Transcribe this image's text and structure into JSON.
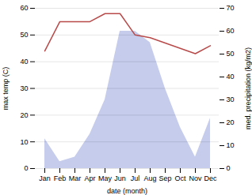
{
  "chart_data": {
    "type": "line",
    "categories": [
      "Jan",
      "Feb",
      "Mar",
      "Apr",
      "May",
      "Jun",
      "Jul",
      "Aug",
      "Sep",
      "Oct",
      "Nov",
      "Dec"
    ],
    "series": [
      {
        "type": "area",
        "axis": "y2",
        "color": "#c5ccec",
        "values": [
          13,
          3,
          5,
          15,
          30,
          60,
          60,
          55,
          35,
          18,
          5,
          22
        ]
      },
      {
        "type": "line",
        "color": "#b94a4a",
        "values": [
          44,
          55,
          55,
          55,
          58,
          58,
          50,
          49,
          47,
          45,
          43,
          46
        ]
      }
    ],
    "xlabel": "date (month)",
    "ylabel": "max temp (C)",
    "y2label": "med. precipitation (kg/m2)",
    "ylim": [
      0,
      60
    ],
    "yticks": [
      0,
      10,
      20,
      30,
      40,
      50,
      60
    ],
    "y2lim": [
      0,
      70
    ],
    "y2ticks": [
      0,
      10,
      20,
      30,
      40,
      50,
      60,
      70
    ],
    "grid": true
  }
}
